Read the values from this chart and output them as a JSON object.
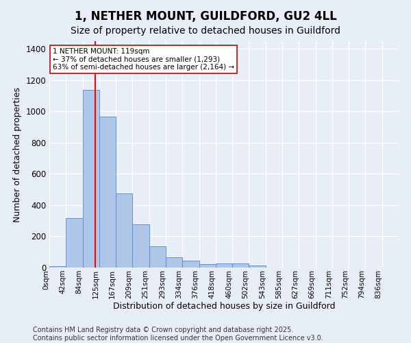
{
  "title": "1, NETHER MOUNT, GUILDFORD, GU2 4LL",
  "subtitle": "Size of property relative to detached houses in Guildford",
  "xlabel": "Distribution of detached houses by size in Guildford",
  "ylabel": "Number of detached properties",
  "bin_labels": [
    "0sqm",
    "42sqm",
    "84sqm",
    "125sqm",
    "167sqm",
    "209sqm",
    "251sqm",
    "293sqm",
    "334sqm",
    "376sqm",
    "418sqm",
    "460sqm",
    "502sqm",
    "543sqm",
    "585sqm",
    "627sqm",
    "669sqm",
    "711sqm",
    "752sqm",
    "794sqm",
    "836sqm"
  ],
  "bar_heights": [
    10,
    315,
    1140,
    965,
    475,
    275,
    135,
    65,
    45,
    20,
    25,
    25,
    15,
    2,
    2,
    2,
    2,
    2,
    2,
    2,
    2
  ],
  "bar_color": "#aec6e8",
  "bar_edge_color": "#5588cc",
  "vline_x": 2.77,
  "vline_color": "red",
  "ylim": [
    0,
    1450
  ],
  "yticks": [
    0,
    200,
    400,
    600,
    800,
    1000,
    1200,
    1400
  ],
  "annotation_text": "1 NETHER MOUNT: 119sqm\n← 37% of detached houses are smaller (1,293)\n63% of semi-detached houses are larger (2,164) →",
  "annotation_box_color": "white",
  "annotation_box_edge": "#cc0000",
  "footer_line1": "Contains HM Land Registry data © Crown copyright and database right 2025.",
  "footer_line2": "Contains public sector information licensed under the Open Government Licence v3.0.",
  "bg_color": "#e8eef8",
  "plot_bg_color": "#e8eef8",
  "grid_color": "#ffffff",
  "title_fontsize": 12,
  "subtitle_fontsize": 10,
  "label_fontsize": 9,
  "tick_fontsize": 7.5,
  "footer_fontsize": 7
}
